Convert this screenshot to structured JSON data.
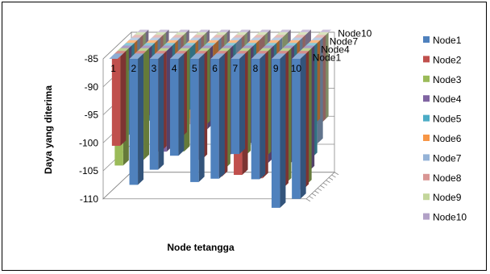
{
  "chart_data": {
    "type": "bar",
    "subtype": "3d-column",
    "title": "",
    "xlabel": "Node tetangga",
    "ylabel": "Daya yang diterima",
    "ylim": [
      -110,
      -85
    ],
    "yticks": [
      -85,
      -90,
      -95,
      -100,
      -105,
      -110
    ],
    "categories": [
      "1",
      "2",
      "3",
      "4",
      "5",
      "6",
      "7",
      "8",
      "9",
      "10"
    ],
    "depth_labels": [
      "Node1",
      "Node4",
      "Node7",
      "Node10"
    ],
    "legend_position": "right",
    "gridlines": true,
    "series": [
      {
        "name": "Node1",
        "color": "#4F81BD",
        "values": [
          -85,
          -107.5,
          -104.8,
          -102.3,
          -107,
          -106.4,
          -102,
          -106.5,
          -111.6,
          -110
        ]
      },
      {
        "name": "Node2",
        "color": "#C0504D",
        "values": [
          -101,
          -85,
          -102,
          -99.5,
          -103.5,
          -106.5,
          -106.2,
          -106.8,
          -108.6,
          -108.8
        ]
      },
      {
        "name": "Node3",
        "color": "#9BBB59",
        "values": [
          -105,
          -104,
          -85,
          -102.5,
          -98,
          -105.6,
          -103.3,
          -103.5,
          -108.2,
          -108.5
        ]
      },
      {
        "name": "Node4",
        "color": "#8064A2",
        "values": [
          -89,
          -97,
          -103,
          -85,
          -99,
          -104,
          -102,
          -105,
          -105.4,
          -106.5
        ]
      },
      {
        "name": "Node5",
        "color": "#4BACC6",
        "values": [
          -100.5,
          -98,
          -102.5,
          -96,
          -85,
          -97,
          -100,
          -102,
          -103,
          -104.6
        ]
      },
      {
        "name": "Node6",
        "color": "#F79646",
        "values": [
          -100,
          -97,
          -102,
          -98,
          -94,
          -85,
          -94,
          -97,
          -98,
          -99
        ]
      },
      {
        "name": "Node7",
        "color": "#95B3D7",
        "values": [
          -96,
          -98,
          -99,
          -97,
          -93,
          -94,
          -85,
          -95,
          -100,
          -103
        ]
      },
      {
        "name": "Node8",
        "color": "#D99694",
        "values": [
          -98,
          -99,
          -101,
          -100,
          -95,
          -98,
          -95,
          -85,
          -97,
          -100
        ]
      },
      {
        "name": "Node9",
        "color": "#C3D69B",
        "values": [
          -97,
          -96,
          -99,
          -97,
          -94,
          -96,
          -95,
          -97,
          -85,
          -100
        ]
      },
      {
        "name": "Node10",
        "color": "#B2A1C7",
        "values": [
          -95,
          -96,
          -97,
          -96,
          -93,
          -95,
          -94,
          -96,
          -97,
          -85
        ]
      }
    ]
  }
}
